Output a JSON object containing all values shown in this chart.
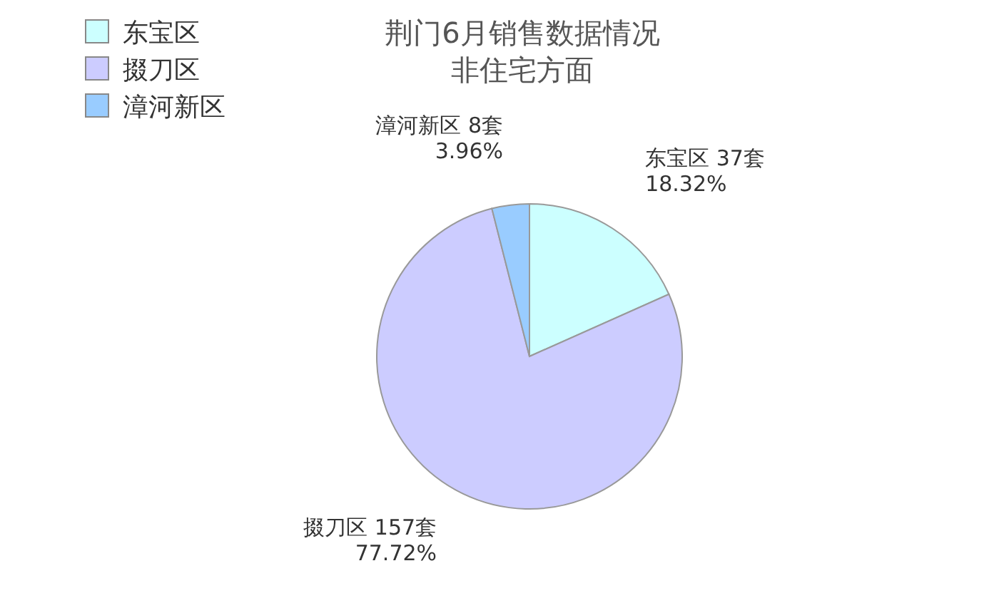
{
  "chart_data": {
    "type": "pie",
    "title": "荆门6月销售数据情况",
    "subtitle": "非住宅方面",
    "categories": [
      "东宝区",
      "掇刀区",
      "漳河新区"
    ],
    "values": [
      37,
      157,
      8
    ],
    "value_labels": [
      "37套\n18.32%",
      "157套\n77.72%",
      "8套\n3.96%"
    ],
    "colors": [
      "#ccffff",
      "#ccccff",
      "#99ccff"
    ],
    "legend": "top left"
  }
}
